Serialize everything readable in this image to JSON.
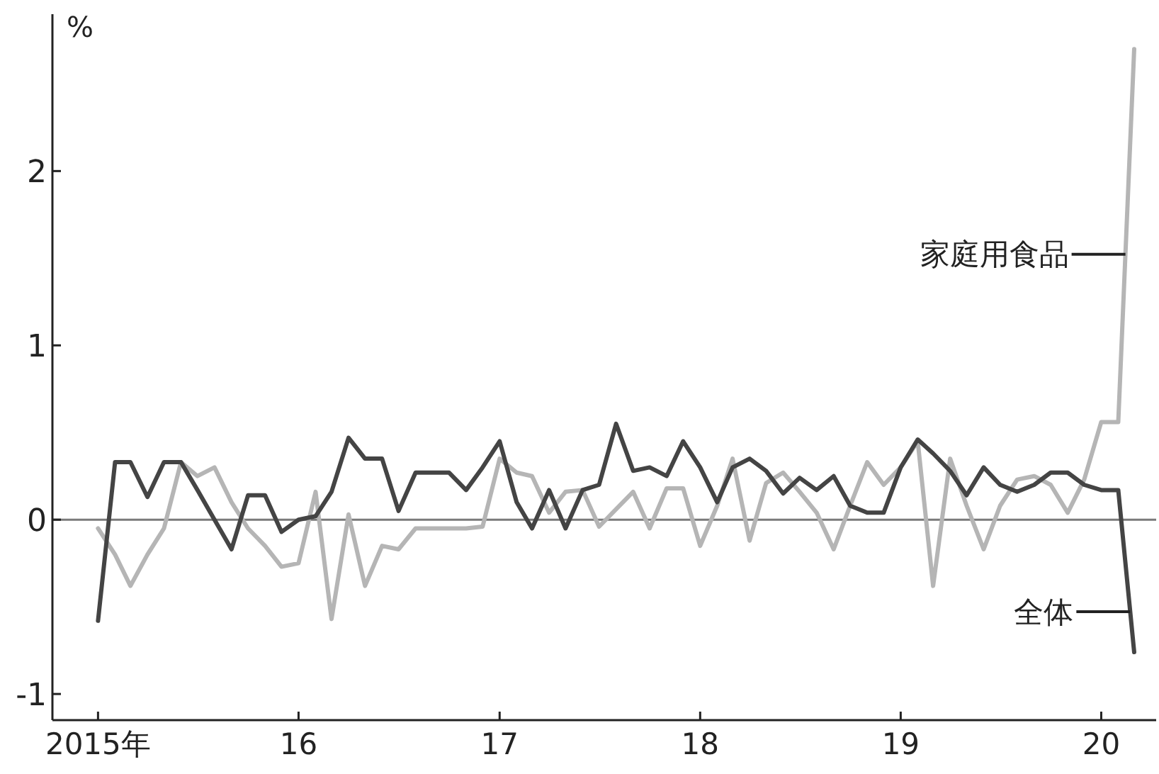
{
  "chart_data": {
    "type": "line",
    "ylabel": "%",
    "x": [
      "2015-01",
      "2015-02",
      "2015-03",
      "2015-04",
      "2015-05",
      "2015-06",
      "2015-07",
      "2015-08",
      "2015-09",
      "2015-10",
      "2015-11",
      "2015-12",
      "2016-01",
      "2016-02",
      "2016-03",
      "2016-04",
      "2016-05",
      "2016-06",
      "2016-07",
      "2016-08",
      "2016-09",
      "2016-10",
      "2016-11",
      "2016-12",
      "2017-01",
      "2017-02",
      "2017-03",
      "2017-04",
      "2017-05",
      "2017-06",
      "2017-07",
      "2017-08",
      "2017-09",
      "2017-10",
      "2017-11",
      "2017-12",
      "2018-01",
      "2018-02",
      "2018-03",
      "2018-04",
      "2018-05",
      "2018-06",
      "2018-07",
      "2018-08",
      "2018-09",
      "2018-10",
      "2018-11",
      "2018-12",
      "2019-01",
      "2019-02",
      "2019-03",
      "2019-04",
      "2019-05",
      "2019-06",
      "2019-07",
      "2019-08",
      "2019-09",
      "2019-10",
      "2019-11",
      "2019-12",
      "2020-01",
      "2020-02",
      "2020-03"
    ],
    "series": [
      {
        "name": "家庭用食品",
        "color": "#b5b5b5",
        "values": [
          -0.05,
          -0.2,
          -0.38,
          -0.2,
          -0.05,
          0.33,
          0.25,
          0.3,
          0.1,
          -0.05,
          -0.15,
          -0.27,
          -0.25,
          0.16,
          -0.57,
          0.03,
          -0.38,
          -0.15,
          -0.17,
          -0.05,
          -0.05,
          -0.05,
          -0.05,
          -0.04,
          0.35,
          0.27,
          0.25,
          0.04,
          0.16,
          0.17,
          -0.04,
          0.06,
          0.16,
          -0.05,
          0.18,
          0.18,
          -0.15,
          0.08,
          0.35,
          -0.12,
          0.21,
          0.27,
          0.16,
          0.04,
          -0.17,
          0.08,
          0.33,
          0.2,
          0.3,
          0.45,
          -0.38,
          0.35,
          0.08,
          -0.17,
          0.08,
          0.23,
          0.25,
          0.2,
          0.04,
          0.23,
          0.56,
          0.56,
          2.7
        ]
      },
      {
        "name": "全体",
        "color": "#444444",
        "values": [
          -0.58,
          0.33,
          0.33,
          0.13,
          0.33,
          0.33,
          0.17,
          0.0,
          -0.17,
          0.14,
          0.14,
          -0.07,
          0.0,
          0.02,
          0.16,
          0.47,
          0.35,
          0.35,
          0.05,
          0.27,
          0.27,
          0.27,
          0.17,
          0.3,
          0.45,
          0.1,
          -0.05,
          0.17,
          -0.05,
          0.17,
          0.2,
          0.55,
          0.28,
          0.3,
          0.25,
          0.45,
          0.3,
          0.1,
          0.3,
          0.35,
          0.28,
          0.15,
          0.24,
          0.17,
          0.25,
          0.08,
          0.04,
          0.04,
          0.3,
          0.46,
          0.38,
          0.28,
          0.14,
          0.3,
          0.2,
          0.16,
          0.2,
          0.27,
          0.27,
          0.2,
          0.17,
          0.17,
          -0.76
        ]
      }
    ],
    "xlim": [
      "2014-10-10",
      "2020-04-10"
    ],
    "xticks": [
      {
        "value": "2015-01",
        "label": "2015年"
      },
      {
        "value": "2016-01",
        "label": "16"
      },
      {
        "value": "2017-01",
        "label": "17"
      },
      {
        "value": "2018-01",
        "label": "18"
      },
      {
        "value": "2019-01",
        "label": "19"
      },
      {
        "value": "2020-01",
        "label": "20"
      }
    ],
    "ylim": [
      -1.15,
      2.9
    ],
    "yticks": [
      -1,
      0,
      1,
      2
    ],
    "ref_lines": [
      {
        "axis": "y",
        "value": 0,
        "color": "#7a7a7a"
      }
    ],
    "grid": false,
    "legend": false,
    "marker": "none",
    "line_style": "solid"
  }
}
